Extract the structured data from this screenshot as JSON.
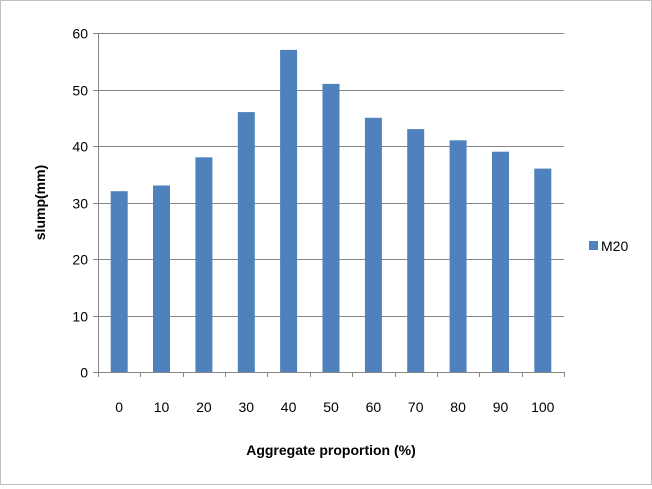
{
  "chart_data": {
    "type": "bar",
    "categories": [
      "0",
      "10",
      "20",
      "30",
      "40",
      "50",
      "60",
      "70",
      "80",
      "90",
      "100"
    ],
    "series": [
      {
        "name": "M20",
        "values": [
          32,
          33,
          38,
          46,
          57,
          51,
          45,
          43,
          41,
          39,
          36
        ],
        "color": "#4f81bd"
      }
    ],
    "xlabel": "Aggregate proportion (%)",
    "ylabel": "slump(mm)",
    "ylim": [
      0,
      60
    ],
    "yticks": [
      0,
      10,
      20,
      30,
      40,
      50,
      60
    ],
    "grid": true,
    "legend_position": "right"
  }
}
